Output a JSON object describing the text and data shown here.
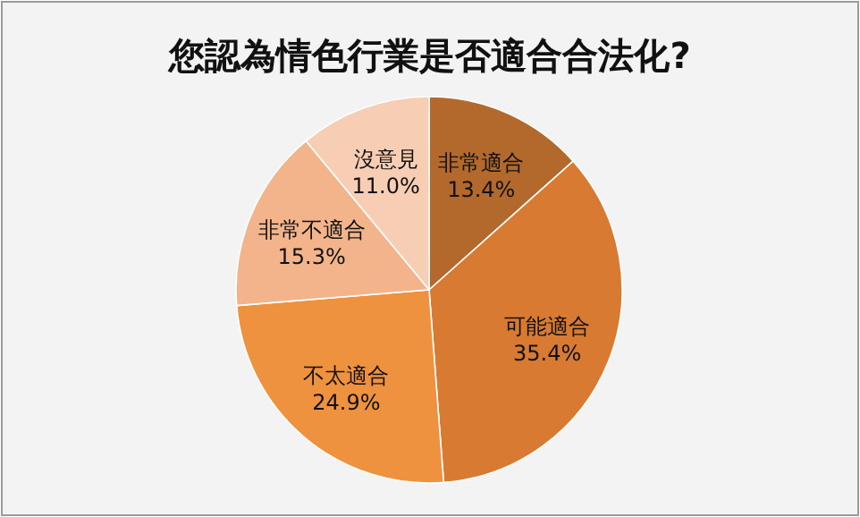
{
  "chart_data": {
    "type": "pie",
    "title": "您認為情色行業是否適合合法化?",
    "categories": [
      "非常適合",
      "可能適合",
      "不太適合",
      "非常不適合",
      "沒意見"
    ],
    "values": [
      13.4,
      35.4,
      24.9,
      15.3,
      11.0
    ],
    "value_labels": [
      "13.4%",
      "35.4%",
      "24.9%",
      "15.3%",
      "11.0%"
    ],
    "colors": [
      "#b3682c",
      "#d97a32",
      "#ef9240",
      "#f3b48c",
      "#f7cdb3"
    ]
  }
}
